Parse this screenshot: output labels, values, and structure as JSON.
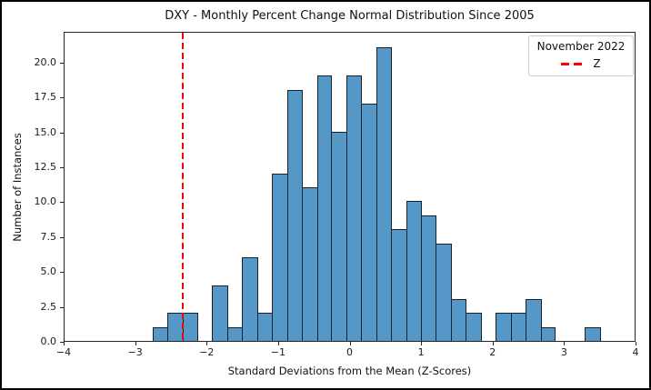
{
  "figure": {
    "title": "DXY - Monthly Percent Change Normal Distribution Since 2005"
  },
  "axes": {
    "x": {
      "label": "Standard Deviations from the Mean (Z-Scores)",
      "min": -4,
      "max": 4,
      "ticks": [
        {
          "v": -4,
          "label": "−4"
        },
        {
          "v": -3,
          "label": "−3"
        },
        {
          "v": -2,
          "label": "−2"
        },
        {
          "v": -1,
          "label": "−1"
        },
        {
          "v": 0,
          "label": "0"
        },
        {
          "v": 1,
          "label": "1"
        },
        {
          "v": 2,
          "label": "2"
        },
        {
          "v": 3,
          "label": "3"
        },
        {
          "v": 4,
          "label": "4"
        }
      ]
    },
    "y": {
      "label": "Number of Instances",
      "min": 0,
      "max": 22.2,
      "ticks": [
        {
          "v": 0,
          "label": "0.0"
        },
        {
          "v": 2.5,
          "label": "2.5"
        },
        {
          "v": 5,
          "label": "5.0"
        },
        {
          "v": 7.5,
          "label": "7.5"
        },
        {
          "v": 10,
          "label": "10.0"
        },
        {
          "v": 12.5,
          "label": "12.5"
        },
        {
          "v": 15,
          "label": "15.0"
        },
        {
          "v": 17.5,
          "label": "17.5"
        },
        {
          "v": 20,
          "label": "20.0"
        }
      ]
    }
  },
  "legend": {
    "title": "November 2022",
    "entries": [
      {
        "label": "Z",
        "style": "dashed",
        "color": "#ff0000"
      }
    ]
  },
  "chart_data": {
    "type": "histogram",
    "title": "DXY - Monthly Percent Change Normal Distribution Since 2005",
    "xlabel": "Standard Deviations from the Mean (Z-Scores)",
    "ylabel": "Number of Instances",
    "xlim": [
      -4,
      4
    ],
    "ylim": [
      0,
      22.2
    ],
    "grid": false,
    "legend_position": "upper right",
    "bin_edges": [
      -2.77,
      -2.56,
      -2.35,
      -2.14,
      -1.94,
      -1.73,
      -1.52,
      -1.31,
      -1.1,
      -0.89,
      -0.68,
      -0.47,
      -0.27,
      -0.06,
      0.15,
      0.36,
      0.57,
      0.78,
      0.99,
      1.19,
      1.4,
      1.61,
      1.82,
      2.03,
      2.24,
      2.45,
      2.66,
      2.86,
      3.07,
      3.28,
      3.49
    ],
    "counts": [
      1,
      2,
      2,
      0,
      4,
      1,
      6,
      2,
      12,
      18,
      11,
      19,
      15,
      19,
      17,
      21,
      8,
      10,
      9,
      7,
      3,
      2,
      0,
      2,
      2,
      3,
      1,
      0,
      0,
      1
    ],
    "z_line": {
      "value": -2.35,
      "label": "Z",
      "legend_title": "November 2022",
      "color": "#ff0000",
      "style": "dashed"
    },
    "colors": {
      "bar_fill": "#5597c7",
      "bar_edge": "#16222e",
      "z_line": "#ff0000"
    }
  }
}
